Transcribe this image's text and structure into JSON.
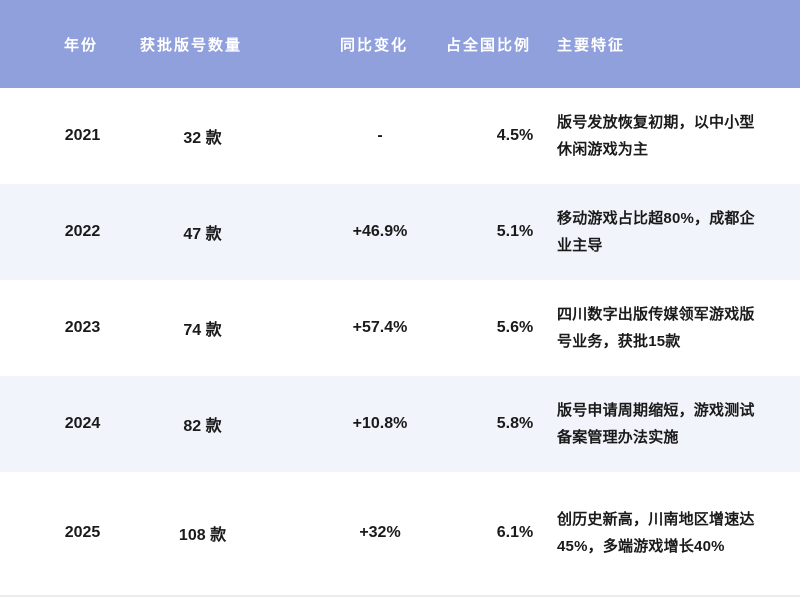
{
  "chart_data": {
    "type": "table",
    "title": "",
    "columns": [
      "年份",
      "获批版号数量",
      "同比变化",
      "占全国比例",
      "主要特征"
    ],
    "rows": [
      [
        "2021",
        "32 款",
        "-",
        "4.5%",
        "版号发放恢复初期，以中小型休闲游戏为主"
      ],
      [
        "2022",
        "47 款",
        "+46.9%",
        "5.1%",
        "移动游戏占比超80%，成都企业主导"
      ],
      [
        "2023",
        "74 款",
        "+57.4%",
        "5.6%",
        "四川数字出版传媒领军游戏版号业务，获批15款"
      ],
      [
        "2024",
        "82 款",
        "+10.8%",
        "5.8%",
        "版号申请周期缩短，游戏测试备案管理办法实施"
      ],
      [
        "2025",
        "108 款",
        "+32%",
        "6.1%",
        "创历史新高，川南地区增速达45%，多端游戏增长40%"
      ]
    ],
    "series": [
      {
        "name": "获批版号数量(款)",
        "values": [
          32,
          47,
          74,
          82,
          108
        ]
      },
      {
        "name": "同比变化(%)",
        "values": [
          null,
          46.9,
          57.4,
          10.8,
          32
        ]
      },
      {
        "name": "占全国比例(%)",
        "values": [
          4.5,
          5.1,
          5.6,
          5.8,
          6.1
        ]
      }
    ],
    "categories": [
      "2021",
      "2022",
      "2023",
      "2024",
      "2025"
    ]
  },
  "colors": {
    "header_bg": "#90a0dc",
    "header_text": "#ffffff",
    "row_bg": "#ffffff",
    "row_alt_bg": "#f1f4fb",
    "text": "#1a1a1a"
  }
}
